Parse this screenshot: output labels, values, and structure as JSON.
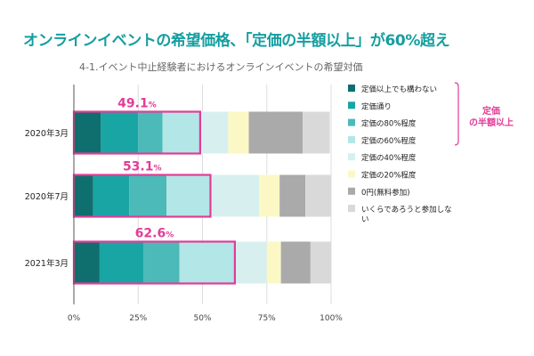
{
  "headline": "オンラインイベントの希望価格、「定価の半額以上」が60%超え",
  "colors": {
    "headline": "#159ea0",
    "highlight": "#e23c98",
    "grid": "#dddddd",
    "axis": "#555555"
  },
  "chart_data": {
    "type": "bar",
    "orientation": "horizontal",
    "stacked": true,
    "title": "4-1.イベント中止経験者におけるオンラインイベントの希望対価",
    "categories": [
      "2020年3月",
      "2020年7月",
      "2021年3月"
    ],
    "xlim": [
      0,
      100
    ],
    "x_ticks": [
      0,
      25,
      50,
      75,
      100
    ],
    "x_tick_labels": [
      "0%",
      "25%",
      "50%",
      "75%",
      "100%"
    ],
    "grid": "vertical",
    "legend_position": "right",
    "series": [
      {
        "name": "定価以上でも構わない",
        "color": "#0f6e6e",
        "values": [
          10.5,
          7.5,
          10
        ]
      },
      {
        "name": "定価通り",
        "color": "#19a5a3",
        "values": [
          14.5,
          14,
          17
        ]
      },
      {
        "name": "定価の80%程度",
        "color": "#4bbab8",
        "values": [
          9.5,
          14.5,
          14
        ]
      },
      {
        "name": "定価の60%程度",
        "color": "#b3e6e6",
        "values": [
          14.5,
          17,
          21.5
        ]
      },
      {
        "name": "定価の40%程度",
        "color": "#d7f0ef",
        "values": [
          11,
          19,
          12.5
        ]
      },
      {
        "name": "定価の20%程度",
        "color": "#fbf8c6",
        "values": [
          8,
          8,
          5.5
        ]
      },
      {
        "name": "0円(無料参加)",
        "color": "#aaaaaa",
        "values": [
          21,
          10,
          11.5
        ]
      },
      {
        "name": "いくらであろうと参加しない",
        "color": "#d9d9d9",
        "values": [
          10.5,
          10,
          8
        ]
      }
    ],
    "highlight": {
      "label": "定価の半額以上",
      "values": [
        49.1,
        53.1,
        62.6
      ],
      "value_labels": [
        {
          "number": "49.1",
          "unit": "%"
        },
        {
          "number": "53.1",
          "unit": "%"
        },
        {
          "number": "62.6",
          "unit": "%"
        }
      ]
    }
  }
}
